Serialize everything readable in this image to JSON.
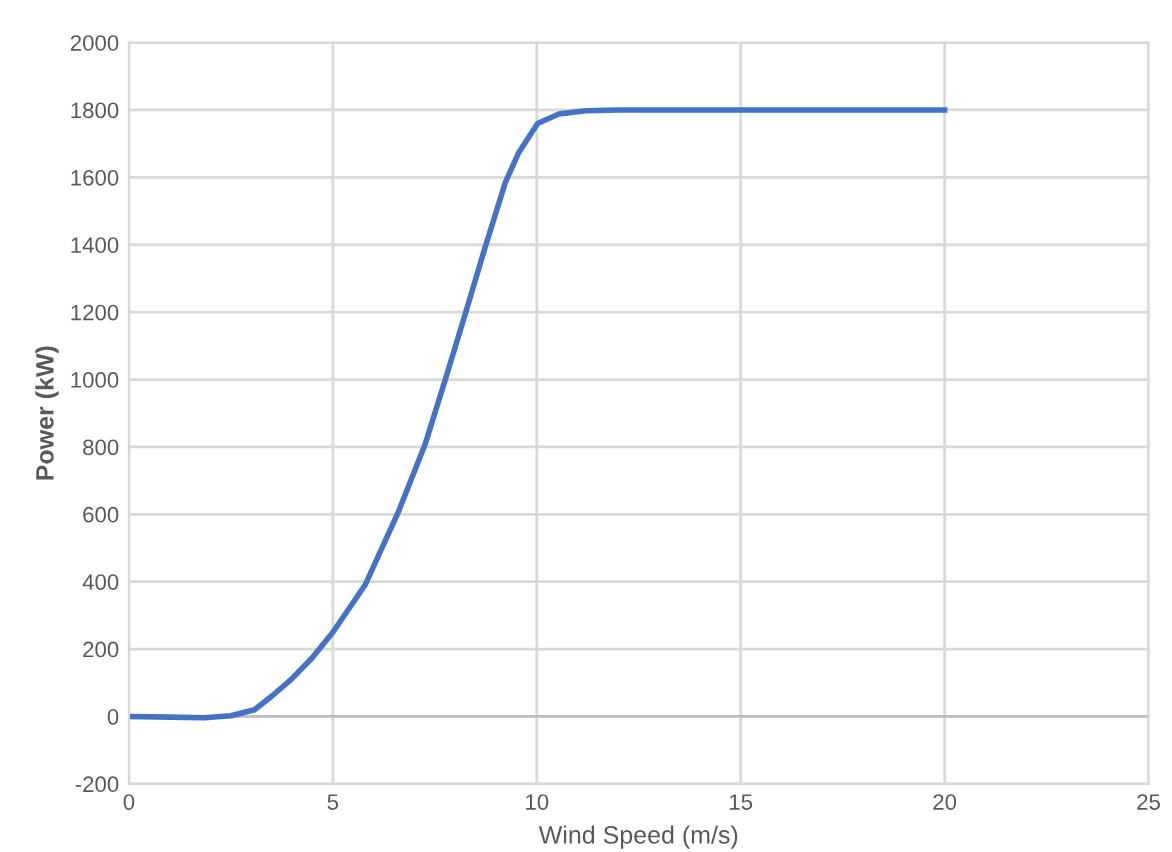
{
  "chart_data": {
    "type": "line",
    "xlabel": "Wind Speed (m/s)",
    "ylabel": "Power (kW)",
    "x": [
      0,
      1,
      1.85,
      2.5,
      3.08,
      3.5,
      3.98,
      4.5,
      5,
      5.79,
      6.61,
      7.26,
      7.75,
      8.25,
      8.74,
      9.23,
      9.56,
      10.02,
      10.54,
      11.2,
      12,
      14,
      16,
      18,
      20
    ],
    "series": [
      {
        "color": "#4472c4",
        "values": [
          0,
          -2,
          -4,
          2,
          20,
          60,
          110,
          175,
          250,
          390,
          608,
          807,
          997,
          1196,
          1395,
          1585,
          1674,
          1760,
          1788,
          1798,
          1800,
          1800,
          1800,
          1800,
          1800
        ]
      }
    ],
    "xlim": [
      0,
      25
    ],
    "xticks": [
      0,
      5,
      10,
      15,
      20,
      25
    ],
    "ylim": [
      -200,
      2000
    ],
    "yticks": [
      -200,
      0,
      200,
      400,
      600,
      800,
      1000,
      1200,
      1400,
      1600,
      1800,
      2000
    ],
    "grid": true,
    "legend": false,
    "marker": "none",
    "line_style": "solid"
  }
}
